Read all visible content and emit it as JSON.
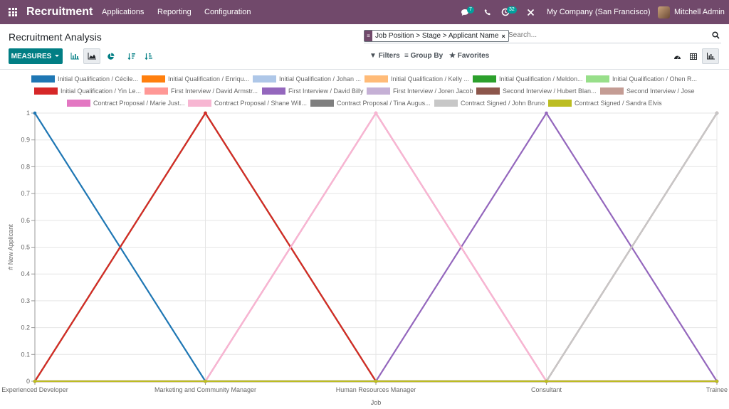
{
  "topbar": {
    "brand": "Recruitment",
    "nav": [
      "Applications",
      "Reporting",
      "Configuration"
    ],
    "messages_count": "7",
    "activities_count": "32",
    "company": "My Company (San Francisco)",
    "user": "Mitchell Admin"
  },
  "control": {
    "title": "Recruitment Analysis",
    "facet": "Job Position > Stage > Applicant Name",
    "search_placeholder": "Search...",
    "measures_label": "MEASURES",
    "filters_label": "Filters",
    "groupby_label": "Group By",
    "favorites_label": "Favorites"
  },
  "chart_data": {
    "type": "line",
    "xlabel": "Job",
    "ylabel": "# New Applicant",
    "ylim": [
      0,
      1
    ],
    "yticks": [
      "0",
      "0.1",
      "0.2",
      "0.3",
      "0.4",
      "0.5",
      "0.6",
      "0.7",
      "0.8",
      "0.9",
      "1"
    ],
    "categories": [
      "Experienced Developer",
      "Marketing and Community Manager",
      "Human Resources Manager",
      "Consultant",
      "Trainee"
    ],
    "series": [
      {
        "name": "Initial Qualification / Cécile...",
        "color": "#1f77b4",
        "values": [
          1,
          0,
          0,
          0,
          0
        ]
      },
      {
        "name": "Initial Qualification / Enriqu...",
        "color": "#ff7f0e",
        "values": [
          0,
          1,
          0,
          0,
          0
        ]
      },
      {
        "name": "Initial Qualification / Johan ...",
        "color": "#aec7e8",
        "values": [
          0,
          1,
          0,
          0,
          0
        ]
      },
      {
        "name": "Initial Qualification / Kelly ...",
        "color": "#ffbb78",
        "values": [
          0,
          1,
          0,
          0,
          0
        ]
      },
      {
        "name": "Initial Qualification / Meldon...",
        "color": "#2ca02c",
        "values": [
          0,
          1,
          0,
          0,
          0
        ]
      },
      {
        "name": "Initial Qualification / Ohen R...",
        "color": "#98df8a",
        "values": [
          0,
          1,
          0,
          0,
          0
        ]
      },
      {
        "name": "Initial Qualification / Yin Le...",
        "color": "#d62728",
        "values": [
          0,
          1,
          0,
          0,
          0
        ]
      },
      {
        "name": "First Interview / David Armstr...",
        "color": "#ff9896",
        "values": [
          0,
          0,
          1,
          0,
          0
        ]
      },
      {
        "name": "First Interview / David Billy",
        "color": "#9467bd",
        "values": [
          0,
          0,
          0,
          1,
          0
        ]
      },
      {
        "name": "First Interview / Joren Jacob",
        "color": "#c5b0d5",
        "values": [
          0,
          0,
          0,
          0,
          1
        ]
      },
      {
        "name": "Second Interview / Hubert Blan...",
        "color": "#8c564b",
        "values": [
          0,
          0,
          0,
          0,
          1
        ]
      },
      {
        "name": "Second Interview / Jose",
        "color": "#c49c94",
        "values": [
          0,
          0,
          0,
          0,
          1
        ]
      },
      {
        "name": "Contract Proposal / Marie Just...",
        "color": "#e377c2",
        "values": [
          0,
          0,
          1,
          0,
          0
        ]
      },
      {
        "name": "Contract Proposal / Shane Will...",
        "color": "#f7b6d2",
        "values": [
          0,
          0,
          1,
          0,
          0
        ]
      },
      {
        "name": "Contract Proposal / Tina Augus...",
        "color": "#7f7f7f",
        "values": [
          0,
          0,
          0,
          0,
          0
        ]
      },
      {
        "name": "Contract Signed / John Bruno",
        "color": "#c7c7c7",
        "values": [
          0,
          0,
          0,
          0,
          1
        ]
      },
      {
        "name": "Contract Signed / Sandra Elvis",
        "color": "#bcbd22",
        "values": [
          0,
          0,
          0,
          0,
          0
        ]
      }
    ]
  }
}
